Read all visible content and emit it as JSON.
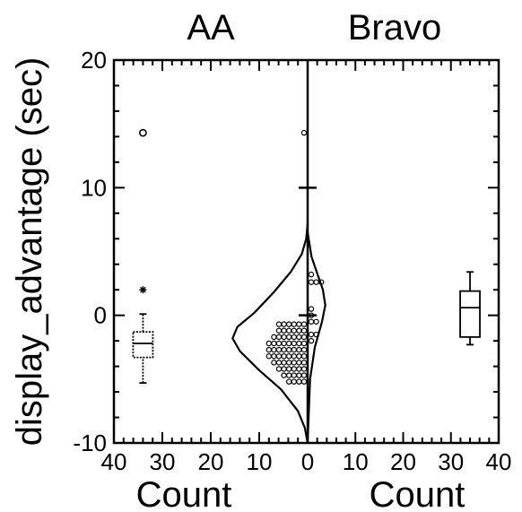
{
  "chart_data": {
    "type": "back-to-back histogram with box plots",
    "panels": [
      {
        "title": "AA",
        "xlabel": "Count",
        "xlim": [
          40,
          0
        ],
        "box": {
          "whisker_low": -5.3,
          "q1": -3.3,
          "median": -2.2,
          "q3": -1.3,
          "whisker_high": 0.1,
          "outliers": [
            {
              "y": 14.3,
              "marker": "circle"
            },
            {
              "y": 2.0,
              "marker": "star"
            }
          ]
        },
        "density_curve": [
          [
            0,
            -10
          ],
          [
            0.6,
            -8.8
          ],
          [
            2.0,
            -7.5
          ],
          [
            5.5,
            -5.8
          ],
          [
            10,
            -4.3
          ],
          [
            14,
            -2.8
          ],
          [
            15.5,
            -1.8
          ],
          [
            14.5,
            -0.9
          ],
          [
            11,
            0.2
          ],
          [
            7,
            1.8
          ],
          [
            3.5,
            3.4
          ],
          [
            1.2,
            4.8
          ],
          [
            0.3,
            6.0
          ],
          [
            0,
            7.2
          ]
        ],
        "dot_bins": [
          {
            "y": -5.2,
            "count": 4
          },
          {
            "y": -4.7,
            "count": 5
          },
          {
            "y": -4.2,
            "count": 6
          },
          {
            "y": -3.7,
            "count": 7
          },
          {
            "y": -3.2,
            "count": 8
          },
          {
            "y": -2.7,
            "count": 8
          },
          {
            "y": -2.2,
            "count": 8
          },
          {
            "y": -1.7,
            "count": 7
          },
          {
            "y": -1.2,
            "count": 6
          },
          {
            "y": -0.7,
            "count": 6
          },
          {
            "y": 14.3,
            "count": 1
          }
        ]
      },
      {
        "title": "Bravo",
        "xlabel": "Count",
        "xlim": [
          0,
          40
        ],
        "box": {
          "whisker_low": -2.3,
          "q1": -1.7,
          "median": 0.6,
          "q3": 1.9,
          "whisker_high": 3.4,
          "outliers": []
        },
        "density_curve": [
          [
            0,
            -10
          ],
          [
            0.5,
            -5
          ],
          [
            1.5,
            -2.5
          ],
          [
            3.0,
            -0.5
          ],
          [
            3.7,
            0.8
          ],
          [
            3.2,
            2.0
          ],
          [
            2.0,
            3.3
          ],
          [
            0.8,
            4.6
          ],
          [
            0,
            6.5
          ]
        ],
        "dot_bins": [
          {
            "y": 3.2,
            "count": 1
          },
          {
            "y": 2.6,
            "count": 3
          },
          {
            "y": 0.5,
            "count": 1
          },
          {
            "y": 0.0,
            "count": 1
          },
          {
            "y": -0.5,
            "count": 2
          },
          {
            "y": -1.5,
            "count": 2
          },
          {
            "y": -2.0,
            "count": 1
          }
        ]
      }
    ],
    "ylabel": "display_advantage (sec)",
    "ylim": [
      -10,
      20
    ],
    "yticks": [
      -10,
      0,
      10,
      20
    ],
    "xticks_left": [
      40,
      30,
      20,
      10,
      0
    ],
    "xticks_right": [
      0,
      10,
      20,
      30,
      40
    ],
    "mean_markers": [
      {
        "y": 10
      },
      {
        "y": 0
      }
    ],
    "grid": false
  }
}
